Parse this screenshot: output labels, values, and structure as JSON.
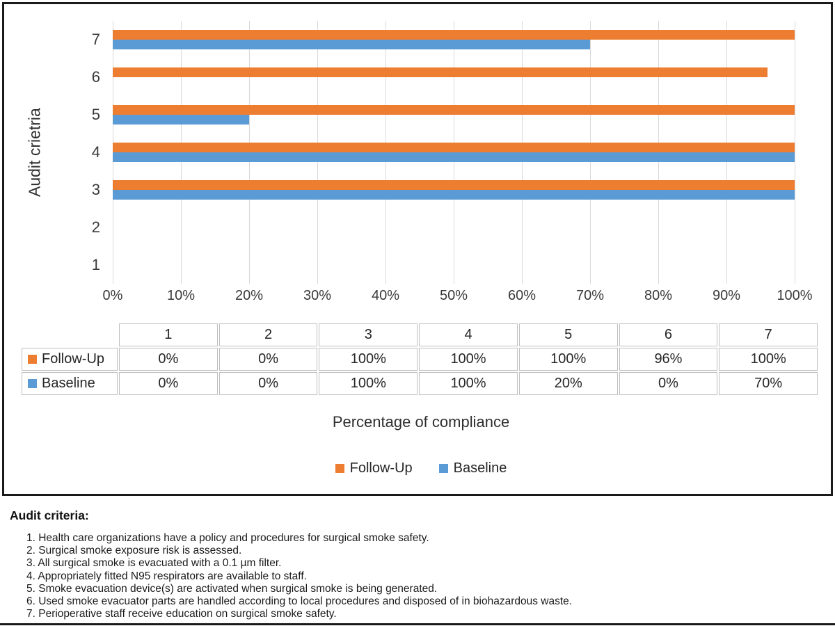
{
  "chart_data": {
    "type": "bar",
    "orientation": "horizontal",
    "title": "",
    "xlabel": "Percentage of compliance",
    "ylabel": "Audit crietria",
    "categories": [
      "1",
      "2",
      "3",
      "4",
      "5",
      "6",
      "7"
    ],
    "series": [
      {
        "name": "Follow-Up",
        "color": "#ED7D31",
        "values": [
          0,
          0,
          100,
          100,
          100,
          96,
          100
        ]
      },
      {
        "name": "Baseline",
        "color": "#5B9BD5",
        "values": [
          0,
          0,
          100,
          100,
          20,
          0,
          70
        ]
      }
    ],
    "xlim": [
      0,
      100
    ],
    "x_ticks": [
      "0%",
      "10%",
      "20%",
      "30%",
      "40%",
      "50%",
      "60%",
      "70%",
      "80%",
      "90%",
      "100%"
    ],
    "grid": true,
    "legend_position": "bottom"
  },
  "data_table": {
    "columns": [
      "1",
      "2",
      "3",
      "4",
      "5",
      "6",
      "7"
    ],
    "rows": [
      {
        "label": "Follow-Up",
        "color": "#ED7D31",
        "values": [
          "0%",
          "0%",
          "100%",
          "100%",
          "100%",
          "96%",
          "100%"
        ]
      },
      {
        "label": "Baseline",
        "color": "#5B9BD5",
        "values": [
          "0%",
          "0%",
          "100%",
          "100%",
          "20%",
          "0%",
          "70%"
        ]
      }
    ]
  },
  "legend": {
    "items": [
      {
        "label": "Follow-Up",
        "color": "#ED7D31"
      },
      {
        "label": "Baseline",
        "color": "#5B9BD5"
      }
    ]
  },
  "notes": {
    "heading": "Audit criteria:",
    "items": [
      "1. Health care organizations have a policy and procedures for surgical smoke safety.",
      "2. Surgical smoke exposure risk is assessed.",
      "3. All surgical smoke is evacuated with a 0.1 µm filter.",
      "4. Appropriately fitted N95 respirators are available to staff.",
      "5. Smoke evacuation device(s) are activated when surgical smoke is being generated.",
      "6. Used smoke evacuator parts are handled according to local procedures and disposed of in biohazardous waste.",
      "7. Perioperative staff receive education on surgical smoke safety."
    ]
  },
  "colors": {
    "follow_up": "#ED7D31",
    "baseline": "#5B9BD5",
    "gridline": "#d9d9d9",
    "table_border": "#bfbfbf",
    "border": "#1a1a1a"
  }
}
